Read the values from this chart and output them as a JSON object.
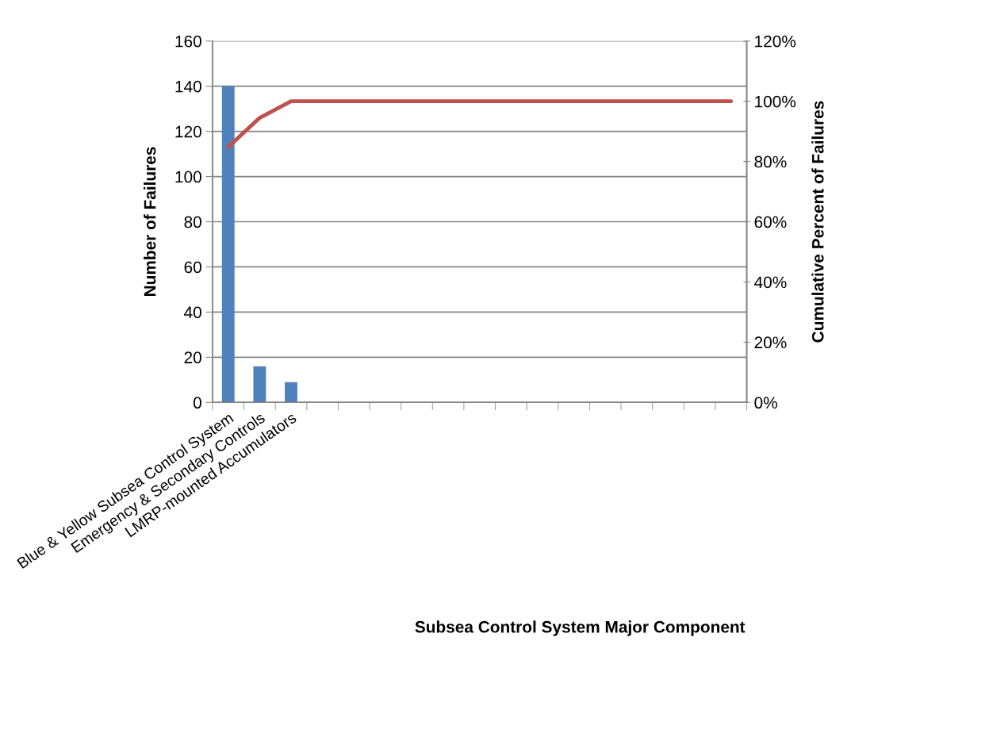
{
  "chart_data": {
    "type": "bar",
    "xlabel": "Subsea Control System Major Component",
    "ylabel": "Number of Failures",
    "y2label": "Cumulative Percent of Failures",
    "categories": [
      "Blue & Yellow Subsea Control System",
      "Emergency & Secondary Controls",
      "LMRP-mounted Accumulators",
      null,
      null,
      null,
      null,
      null,
      null,
      null,
      null,
      null,
      null,
      null,
      null,
      null,
      null
    ],
    "series": [
      {
        "color": "#4f81bd",
        "values": [
          140,
          16,
          9,
          0,
          0,
          0,
          0,
          0,
          0,
          0,
          0,
          0,
          0,
          0,
          0,
          0,
          0
        ]
      },
      {
        "type": "line",
        "axis": "y2",
        "color": "#c0504d",
        "values": [
          84.8,
          94.5,
          100,
          100,
          100,
          100,
          100,
          100,
          100,
          100,
          100,
          100,
          100,
          100,
          100,
          100,
          100
        ]
      }
    ],
    "ylim": [
      0,
      160
    ],
    "yticks": [
      0,
      20,
      40,
      60,
      80,
      100,
      120,
      140,
      160
    ],
    "y2lim": [
      0,
      120
    ],
    "y2ticks": [
      {
        "value": 0,
        "label": "0%"
      },
      {
        "value": 20,
        "label": "20%"
      },
      {
        "value": 40,
        "label": "40%"
      },
      {
        "value": 60,
        "label": "60%"
      },
      {
        "value": 80,
        "label": "80%"
      },
      {
        "value": 100,
        "label": "100%"
      },
      {
        "value": 120,
        "label": "120%"
      }
    ],
    "grid": "y",
    "marker": "none",
    "line_style": "solid"
  }
}
